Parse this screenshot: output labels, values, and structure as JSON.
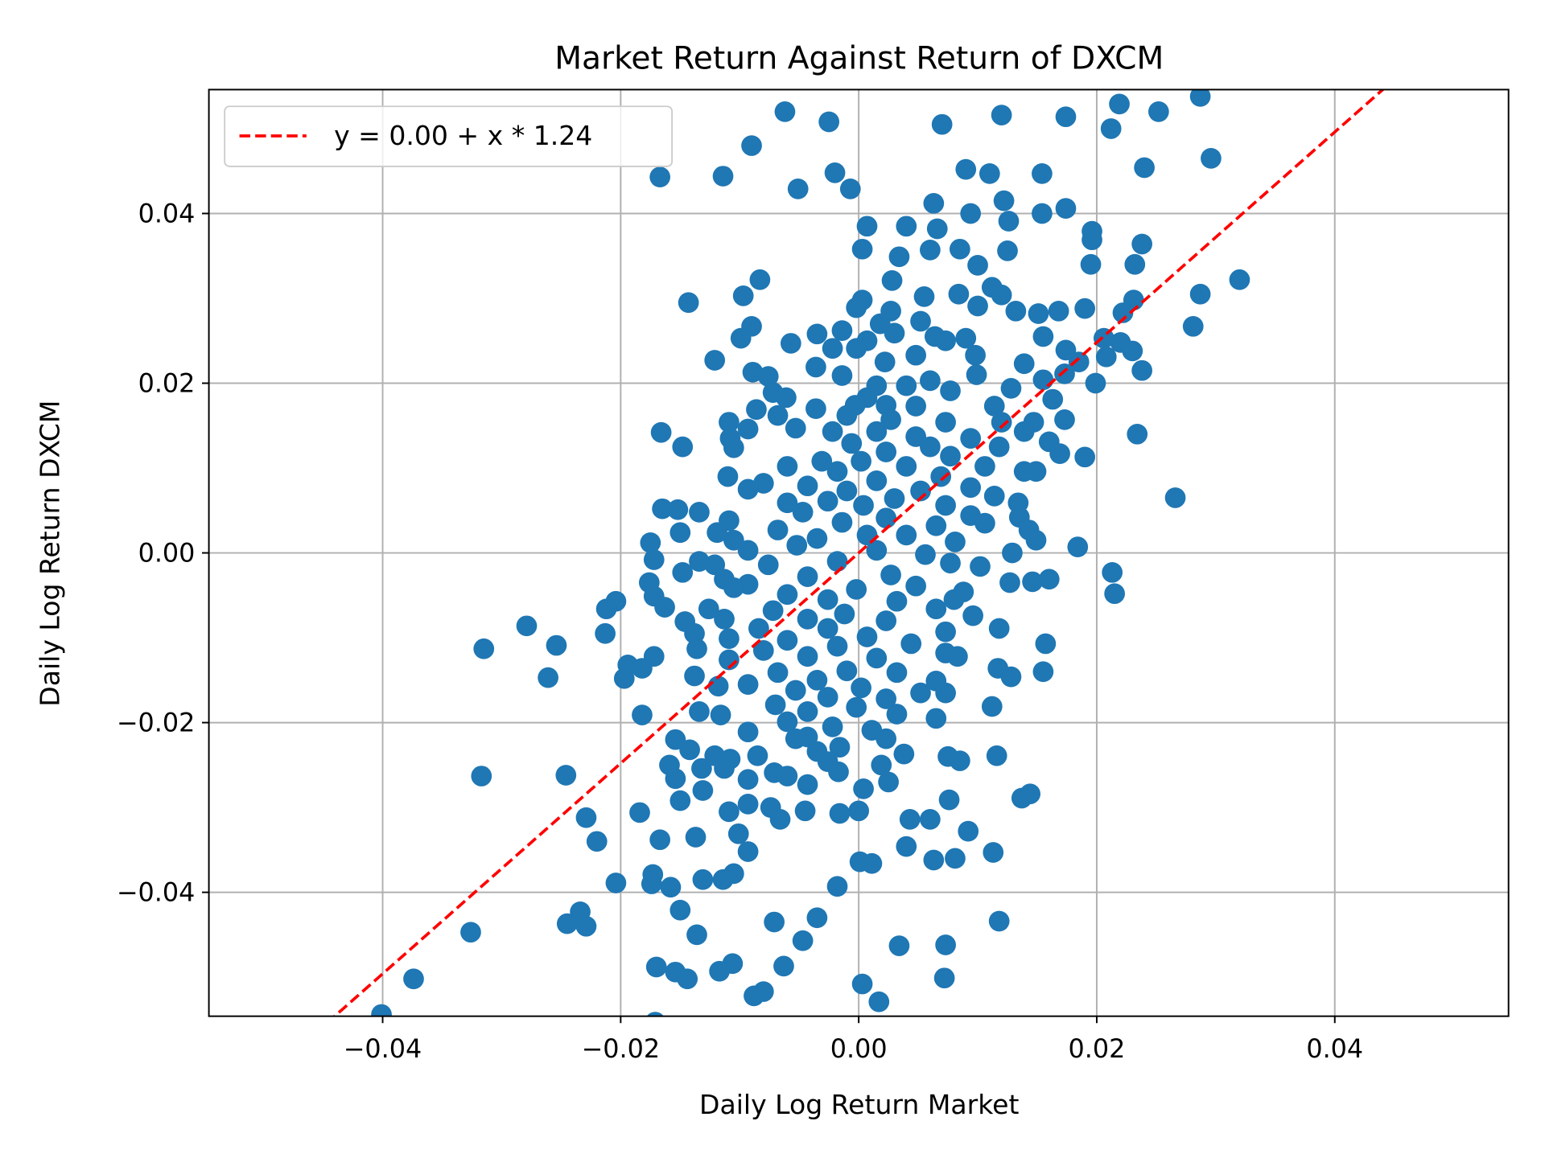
{
  "chart_data": {
    "type": "scatter",
    "title": "Market Return Against Return of DXCM",
    "xlabel": "Daily Log Return Market",
    "ylabel": "Daily Log Return DXCM",
    "xlim": [
      -0.0546,
      0.0546
    ],
    "ylim": [
      -0.0546,
      0.0546
    ],
    "xticks": [
      -0.04,
      -0.02,
      0.0,
      0.02,
      0.04
    ],
    "xtick_labels": [
      "−0.04",
      "−0.02",
      "0.00",
      "0.02",
      "0.04"
    ],
    "yticks": [
      -0.04,
      -0.02,
      0.0,
      0.02,
      0.04
    ],
    "ytick_labels": [
      "−0.04",
      "−0.02",
      "0.00",
      "0.02",
      "0.04"
    ],
    "grid": true,
    "legend_position": "top-left",
    "point_color": "#1f77b4",
    "fit_line": {
      "label": "y = 0.00 + x * 1.24",
      "intercept": 0.0,
      "slope": 1.24,
      "color": "#ff0000",
      "style": "dashed"
    },
    "points": [
      [
        -0.0062,
        0.052
      ],
      [
        -0.0025,
        0.0508
      ],
      [
        0.007,
        0.0505
      ],
      [
        0.012,
        0.0516
      ],
      [
        0.0174,
        0.0514
      ],
      [
        0.0219,
        0.0529
      ],
      [
        0.0252,
        0.052
      ],
      [
        0.0287,
        0.0538
      ],
      [
        0.0212,
        0.05
      ],
      [
        0.0296,
        0.0465
      ],
      [
        0.024,
        0.0454
      ],
      [
        -0.009,
        0.048
      ],
      [
        -0.0167,
        0.0443
      ],
      [
        -0.0114,
        0.0444
      ],
      [
        -0.002,
        0.0448
      ],
      [
        -0.0051,
        0.0429
      ],
      [
        -0.0007,
        0.0429
      ],
      [
        0.009,
        0.0452
      ],
      [
        0.011,
        0.0447
      ],
      [
        0.0154,
        0.0447
      ],
      [
        0.0063,
        0.0412
      ],
      [
        0.0122,
        0.0415
      ],
      [
        0.0174,
        0.0406
      ],
      [
        0.0154,
        0.04
      ],
      [
        0.0094,
        0.04
      ],
      [
        0.0196,
        0.0379
      ],
      [
        0.0126,
        0.0391
      ],
      [
        0.0007,
        0.0385
      ],
      [
        0.004,
        0.0385
      ],
      [
        0.0066,
        0.0382
      ],
      [
        0.0196,
        0.0369
      ],
      [
        0.0238,
        0.0364
      ],
      [
        0.0003,
        0.0358
      ],
      [
        0.0125,
        0.0356
      ],
      [
        0.006,
        0.0357
      ],
      [
        0.0085,
        0.0358
      ],
      [
        0.0034,
        0.0349
      ],
      [
        0.01,
        0.0339
      ],
      [
        0.0195,
        0.034
      ],
      [
        0.0232,
        0.034
      ],
      [
        0.032,
        0.0322
      ],
      [
        -0.0083,
        0.0322
      ],
      [
        0.0028,
        0.0321
      ],
      [
        -0.0097,
        0.0303
      ],
      [
        0.0287,
        0.0305
      ],
      [
        0.0112,
        0.0313
      ],
      [
        0.0084,
        0.0305
      ],
      [
        0.0055,
        0.0302
      ],
      [
        -0.0143,
        0.0295
      ],
      [
        0.0003,
        0.0298
      ],
      [
        0.012,
        0.0304
      ],
      [
        0.0231,
        0.0298
      ],
      [
        0.019,
        0.0288
      ],
      [
        0.0132,
        0.0285
      ],
      [
        -0.0002,
        0.0289
      ],
      [
        0.0168,
        0.0285
      ],
      [
        0.0151,
        0.0282
      ],
      [
        0.0222,
        0.0283
      ],
      [
        0.01,
        0.0291
      ],
      [
        0.0027,
        0.0285
      ],
      [
        -0.009,
        0.0267
      ],
      [
        0.0281,
        0.0267
      ],
      [
        0.0052,
        0.0273
      ],
      [
        -0.0035,
        0.0258
      ],
      [
        0.0018,
        0.027
      ],
      [
        0.003,
        0.0259
      ],
      [
        -0.0014,
        0.0262
      ],
      [
        -0.0099,
        0.0253
      ],
      [
        0.0155,
        0.0255
      ],
      [
        0.0064,
        0.0255
      ],
      [
        -0.0057,
        0.0247
      ],
      [
        0.0206,
        0.0253
      ],
      [
        0.022,
        0.0248
      ],
      [
        0.0007,
        0.025
      ],
      [
        0.0073,
        0.025
      ],
      [
        0.009,
        0.0253
      ],
      [
        -0.0022,
        0.0241
      ],
      [
        -0.0002,
        0.0241
      ],
      [
        0.023,
        0.0238
      ],
      [
        0.0174,
        0.0239
      ],
      [
        -0.0121,
        0.0227
      ],
      [
        0.0098,
        0.0233
      ],
      [
        0.0048,
        0.0233
      ],
      [
        0.0208,
        0.0231
      ],
      [
        0.0022,
        0.0225
      ],
      [
        0.0139,
        0.0223
      ],
      [
        0.0185,
        0.0225
      ],
      [
        -0.0036,
        0.0219
      ],
      [
        -0.0014,
        0.0209
      ],
      [
        -0.0089,
        0.0213
      ],
      [
        0.0238,
        0.0215
      ],
      [
        0.0173,
        0.0211
      ],
      [
        0.0099,
        0.021
      ],
      [
        0.0199,
        0.02
      ],
      [
        0.006,
        0.0203
      ],
      [
        0.0155,
        0.0204
      ],
      [
        -0.0076,
        0.0208
      ],
      [
        0.0015,
        0.0197
      ],
      [
        0.004,
        0.0197
      ],
      [
        0.0077,
        0.0191
      ],
      [
        0.0128,
        0.0194
      ],
      [
        -0.0072,
        0.0189
      ],
      [
        -0.0061,
        0.0183
      ],
      [
        0.0007,
        0.0183
      ],
      [
        0.0163,
        0.0181
      ],
      [
        -0.0003,
        0.0174
      ],
      [
        0.0023,
        0.0174
      ],
      [
        0.0114,
        0.0173
      ],
      [
        0.0048,
        0.0173
      ],
      [
        -0.0086,
        0.0169
      ],
      [
        -0.0036,
        0.017
      ],
      [
        0.0173,
        0.0157
      ],
      [
        0.0147,
        0.0154
      ],
      [
        -0.0109,
        0.0154
      ],
      [
        -0.0068,
        0.0162
      ],
      [
        -0.001,
        0.0162
      ],
      [
        0.0027,
        0.0157
      ],
      [
        0.0073,
        0.0154
      ],
      [
        0.012,
        0.0154
      ],
      [
        -0.0093,
        0.0146
      ],
      [
        -0.0053,
        0.0147
      ],
      [
        -0.0022,
        0.0143
      ],
      [
        0.0015,
        0.0143
      ],
      [
        0.0139,
        0.0143
      ],
      [
        0.0234,
        0.014
      ],
      [
        -0.0166,
        0.0142
      ],
      [
        -0.0108,
        0.0135
      ],
      [
        0.0094,
        0.0135
      ],
      [
        0.0048,
        0.0137
      ],
      [
        -0.0006,
        0.0129
      ],
      [
        0.006,
        0.0125
      ],
      [
        -0.0148,
        0.0125
      ],
      [
        -0.0105,
        0.0124
      ],
      [
        0.0118,
        0.0125
      ],
      [
        0.016,
        0.0131
      ],
      [
        0.0023,
        0.0119
      ],
      [
        0.0169,
        0.0117
      ],
      [
        0.019,
        0.0113
      ],
      [
        0.0077,
        0.0114
      ],
      [
        0.0002,
        0.0108
      ],
      [
        -0.0031,
        0.0108
      ],
      [
        -0.006,
        0.0102
      ],
      [
        0.004,
        0.0102
      ],
      [
        0.0106,
        0.0102
      ],
      [
        0.0139,
        0.0096
      ],
      [
        -0.0018,
        0.0096
      ],
      [
        0.0069,
        0.009
      ],
      [
        -0.011,
        0.009
      ],
      [
        0.0015,
        0.0085
      ],
      [
        -0.008,
        0.0082
      ],
      [
        -0.0043,
        0.0079
      ],
      [
        0.0149,
        0.0096
      ],
      [
        0.0094,
        0.0077
      ],
      [
        -0.0093,
        0.0075
      ],
      [
        0.0052,
        0.0073
      ],
      [
        -0.001,
        0.0073
      ],
      [
        0.0266,
        0.0065
      ],
      [
        0.0114,
        0.0067
      ],
      [
        0.003,
        0.0064
      ],
      [
        -0.0026,
        0.0061
      ],
      [
        -0.006,
        0.0059
      ],
      [
        0.0004,
        0.0056
      ],
      [
        0.0073,
        0.0056
      ],
      [
        0.0134,
        0.0059
      ],
      [
        -0.0165,
        0.0052
      ],
      [
        -0.0152,
        0.0051
      ],
      [
        -0.0134,
        0.0048
      ],
      [
        -0.0047,
        0.0048
      ],
      [
        0.0094,
        0.0044
      ],
      [
        0.0135,
        0.0042
      ],
      [
        0.0023,
        0.0041
      ],
      [
        -0.0109,
        0.0038
      ],
      [
        -0.0014,
        0.0036
      ],
      [
        0.0065,
        0.0032
      ],
      [
        0.0106,
        0.0035
      ],
      [
        0.0143,
        0.0027
      ],
      [
        -0.0119,
        0.0024
      ],
      [
        -0.015,
        0.0024
      ],
      [
        -0.0068,
        0.0027
      ],
      [
        0.0007,
        0.0021
      ],
      [
        -0.0035,
        0.0017
      ],
      [
        0.004,
        0.0021
      ],
      [
        -0.0105,
        0.0015
      ],
      [
        0.0149,
        0.0015
      ],
      [
        0.0081,
        0.0013
      ],
      [
        -0.0175,
        0.0012
      ],
      [
        -0.0052,
        0.0009
      ],
      [
        0.0184,
        0.0007
      ],
      [
        0.0015,
        0.0003
      ],
      [
        -0.0093,
        0.0003
      ],
      [
        0.0129,
        0.0
      ],
      [
        0.0056,
        -0.0002
      ],
      [
        -0.0172,
        -0.0008
      ],
      [
        -0.0018,
        -0.001
      ],
      [
        -0.0134,
        -0.001
      ],
      [
        -0.0121,
        -0.0014
      ],
      [
        -0.0076,
        -0.0014
      ],
      [
        0.0102,
        -0.0016
      ],
      [
        0.0077,
        -0.0012
      ],
      [
        0.0213,
        -0.0023
      ],
      [
        -0.0148,
        -0.0023
      ],
      [
        0.0027,
        -0.0026
      ],
      [
        -0.0043,
        -0.0028
      ],
      [
        -0.0113,
        -0.0031
      ],
      [
        0.0127,
        -0.0035
      ],
      [
        0.0146,
        -0.0034
      ],
      [
        0.016,
        -0.0031
      ],
      [
        -0.0176,
        -0.0035
      ],
      [
        -0.0093,
        -0.0037
      ],
      [
        0.0048,
        -0.0039
      ],
      [
        -0.0002,
        -0.0043
      ],
      [
        -0.0105,
        -0.0041
      ],
      [
        0.0215,
        -0.0048
      ],
      [
        0.0088,
        -0.0046
      ],
      [
        -0.006,
        -0.0049
      ],
      [
        -0.0172,
        -0.0051
      ],
      [
        -0.0026,
        -0.0055
      ],
      [
        -0.0204,
        -0.0057
      ],
      [
        0.0032,
        -0.0057
      ],
      [
        0.008,
        -0.0055
      ],
      [
        -0.0212,
        -0.0066
      ],
      [
        -0.0163,
        -0.0064
      ],
      [
        -0.0126,
        -0.0066
      ],
      [
        -0.0072,
        -0.0068
      ],
      [
        0.0065,
        -0.0066
      ],
      [
        -0.0012,
        -0.0072
      ],
      [
        0.0096,
        -0.0074
      ],
      [
        -0.0043,
        -0.0078
      ],
      [
        -0.0113,
        -0.0078
      ],
      [
        0.0023,
        -0.008
      ],
      [
        -0.0146,
        -0.0081
      ],
      [
        -0.0279,
        -0.0086
      ],
      [
        0.0118,
        -0.0089
      ],
      [
        -0.0084,
        -0.0089
      ],
      [
        -0.0026,
        -0.0089
      ],
      [
        0.0073,
        -0.0093
      ],
      [
        -0.0213,
        -0.0095
      ],
      [
        -0.0138,
        -0.0095
      ],
      [
        0.0007,
        -0.0099
      ],
      [
        -0.0109,
        -0.0101
      ],
      [
        -0.006,
        -0.0103
      ],
      [
        0.0044,
        -0.0107
      ],
      [
        0.0157,
        -0.0107
      ],
      [
        -0.0254,
        -0.0109
      ],
      [
        -0.0018,
        -0.011
      ],
      [
        -0.0315,
        -0.0113
      ],
      [
        -0.0136,
        -0.0113
      ],
      [
        -0.008,
        -0.0115
      ],
      [
        0.0073,
        -0.0118
      ],
      [
        -0.0043,
        -0.0122
      ],
      [
        0.0015,
        -0.0124
      ],
      [
        -0.0172,
        -0.0122
      ],
      [
        -0.0109,
        -0.0126
      ],
      [
        0.0083,
        -0.0122
      ],
      [
        -0.0194,
        -0.0132
      ],
      [
        -0.0182,
        -0.0136
      ],
      [
        0.0117,
        -0.0136
      ],
      [
        -0.001,
        -0.0139
      ],
      [
        -0.0068,
        -0.0141
      ],
      [
        0.0155,
        -0.014
      ],
      [
        -0.0138,
        -0.0145
      ],
      [
        0.0032,
        -0.0141
      ],
      [
        0.0128,
        -0.0146
      ],
      [
        -0.0261,
        -0.0147
      ],
      [
        -0.0197,
        -0.0148
      ],
      [
        -0.0035,
        -0.015
      ],
      [
        0.0065,
        -0.0151
      ],
      [
        -0.0093,
        -0.0155
      ],
      [
        -0.0118,
        -0.0157
      ],
      [
        0.0002,
        -0.0159
      ],
      [
        -0.0053,
        -0.0162
      ],
      [
        0.0052,
        -0.0165
      ],
      [
        0.0073,
        -0.0165
      ],
      [
        -0.0026,
        -0.017
      ],
      [
        0.0023,
        -0.0172
      ],
      [
        -0.007,
        -0.0179
      ],
      [
        0.0112,
        -0.0181
      ],
      [
        -0.0002,
        -0.0182
      ],
      [
        -0.0043,
        -0.0187
      ],
      [
        -0.0134,
        -0.0187
      ],
      [
        -0.0116,
        -0.0191
      ],
      [
        -0.0182,
        -0.0191
      ],
      [
        0.0032,
        -0.019
      ],
      [
        0.0065,
        -0.0195
      ],
      [
        -0.006,
        -0.0199
      ],
      [
        -0.0022,
        -0.0205
      ],
      [
        0.0011,
        -0.0209
      ],
      [
        -0.0093,
        -0.0211
      ],
      [
        -0.0043,
        -0.0217
      ],
      [
        -0.0154,
        -0.022
      ],
      [
        -0.0053,
        -0.0219
      ],
      [
        0.0023,
        -0.0219
      ],
      [
        -0.0016,
        -0.0229
      ],
      [
        -0.0142,
        -0.0232
      ],
      [
        -0.0035,
        -0.0234
      ],
      [
        0.0038,
        -0.0237
      ],
      [
        -0.0121,
        -0.0239
      ],
      [
        0.0116,
        -0.0239
      ],
      [
        -0.0085,
        -0.0239
      ],
      [
        0.0075,
        -0.024
      ],
      [
        -0.0108,
        -0.0243
      ],
      [
        -0.0026,
        -0.0246
      ],
      [
        0.0085,
        -0.0245
      ],
      [
        -0.0159,
        -0.025
      ],
      [
        0.0019,
        -0.025
      ],
      [
        -0.0113,
        -0.0254
      ],
      [
        -0.0132,
        -0.0254
      ],
      [
        -0.0071,
        -0.0259
      ],
      [
        -0.0017,
        -0.0258
      ],
      [
        -0.0317,
        -0.0263
      ],
      [
        -0.0246,
        -0.0262
      ],
      [
        -0.0154,
        -0.0266
      ],
      [
        -0.006,
        -0.0263
      ],
      [
        -0.0093,
        -0.0267
      ],
      [
        0.0025,
        -0.027
      ],
      [
        -0.0043,
        -0.0273
      ],
      [
        -0.0131,
        -0.028
      ],
      [
        0.0004,
        -0.0278
      ],
      [
        0.0144,
        -0.0284
      ],
      [
        0.0137,
        -0.0289
      ],
      [
        -0.015,
        -0.0292
      ],
      [
        0.0076,
        -0.0291
      ],
      [
        -0.0093,
        -0.0296
      ],
      [
        -0.0074,
        -0.03
      ],
      [
        -0.0045,
        -0.0304
      ],
      [
        -0.0184,
        -0.0306
      ],
      [
        -0.0109,
        -0.0305
      ],
      [
        0.0,
        -0.0304
      ],
      [
        -0.0016,
        -0.0307
      ],
      [
        -0.0229,
        -0.0312
      ],
      [
        -0.0066,
        -0.0314
      ],
      [
        0.0043,
        -0.0314
      ],
      [
        0.006,
        -0.0314
      ],
      [
        0.0092,
        -0.0328
      ],
      [
        -0.0101,
        -0.0331
      ],
      [
        -0.0137,
        -0.0335
      ],
      [
        -0.0167,
        -0.0338
      ],
      [
        -0.022,
        -0.034
      ],
      [
        0.004,
        -0.0346
      ],
      [
        -0.0093,
        -0.0352
      ],
      [
        0.0113,
        -0.0353
      ],
      [
        0.0063,
        -0.0362
      ],
      [
        0.0081,
        -0.036
      ],
      [
        0.0001,
        -0.0364
      ],
      [
        0.0011,
        -0.0366
      ],
      [
        -0.0105,
        -0.0378
      ],
      [
        -0.0173,
        -0.0379
      ],
      [
        -0.0131,
        -0.0385
      ],
      [
        -0.0114,
        -0.0385
      ],
      [
        -0.0204,
        -0.0389
      ],
      [
        -0.0174,
        -0.039
      ],
      [
        -0.0158,
        -0.0394
      ],
      [
        -0.0018,
        -0.0393
      ],
      [
        -0.015,
        -0.0421
      ],
      [
        -0.0035,
        -0.043
      ],
      [
        0.0118,
        -0.0434
      ],
      [
        -0.0071,
        -0.0435
      ],
      [
        -0.0234,
        -0.0423
      ],
      [
        -0.0245,
        -0.0437
      ],
      [
        -0.0229,
        -0.044
      ],
      [
        -0.0326,
        -0.0447
      ],
      [
        -0.0136,
        -0.045
      ],
      [
        -0.0047,
        -0.0457
      ],
      [
        0.0034,
        -0.0463
      ],
      [
        0.0073,
        -0.0462
      ],
      [
        -0.0063,
        -0.0487
      ],
      [
        -0.017,
        -0.0488
      ],
      [
        -0.0154,
        -0.0494
      ],
      [
        -0.0106,
        -0.0484
      ],
      [
        -0.0117,
        -0.0493
      ],
      [
        -0.0144,
        -0.0502
      ],
      [
        -0.0374,
        -0.0502
      ],
      [
        0.0072,
        -0.0501
      ],
      [
        0.0003,
        -0.0508
      ],
      [
        -0.008,
        -0.0517
      ],
      [
        -0.0088,
        -0.0522
      ],
      [
        0.0017,
        -0.0529
      ],
      [
        -0.0401,
        -0.0544
      ],
      [
        -0.0171,
        -0.0553
      ]
    ]
  }
}
